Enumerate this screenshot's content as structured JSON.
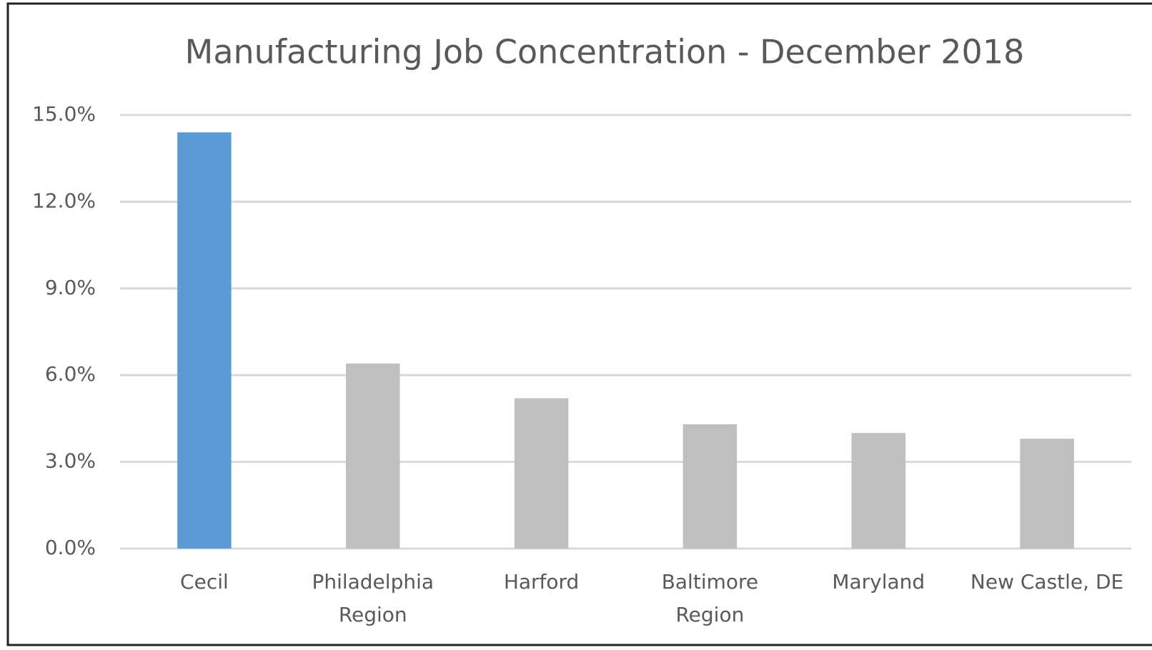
{
  "chart_data": {
    "type": "bar",
    "title": "Manufacturing Job Concentration - December 2018",
    "categories": [
      "Cecil",
      "Philadelphia Region",
      "Harford",
      "Baltimore Region",
      "Maryland",
      "New Castle, DE"
    ],
    "values": [
      14.4,
      6.4,
      5.2,
      4.3,
      4.0,
      3.8
    ],
    "colors": [
      "#5b9bd5",
      "#bfbfbf",
      "#bfbfbf",
      "#bfbfbf",
      "#bfbfbf",
      "#bfbfbf"
    ],
    "ylim": [
      0,
      15
    ],
    "yticks": [
      {
        "value": 0,
        "label": "0.0%"
      },
      {
        "value": 3,
        "label": "3.0%"
      },
      {
        "value": 6,
        "label": "6.0%"
      },
      {
        "value": 9,
        "label": "9.0%"
      },
      {
        "value": 12,
        "label": "12.0%"
      },
      {
        "value": 15,
        "label": "15.0%"
      }
    ],
    "grid": true
  }
}
